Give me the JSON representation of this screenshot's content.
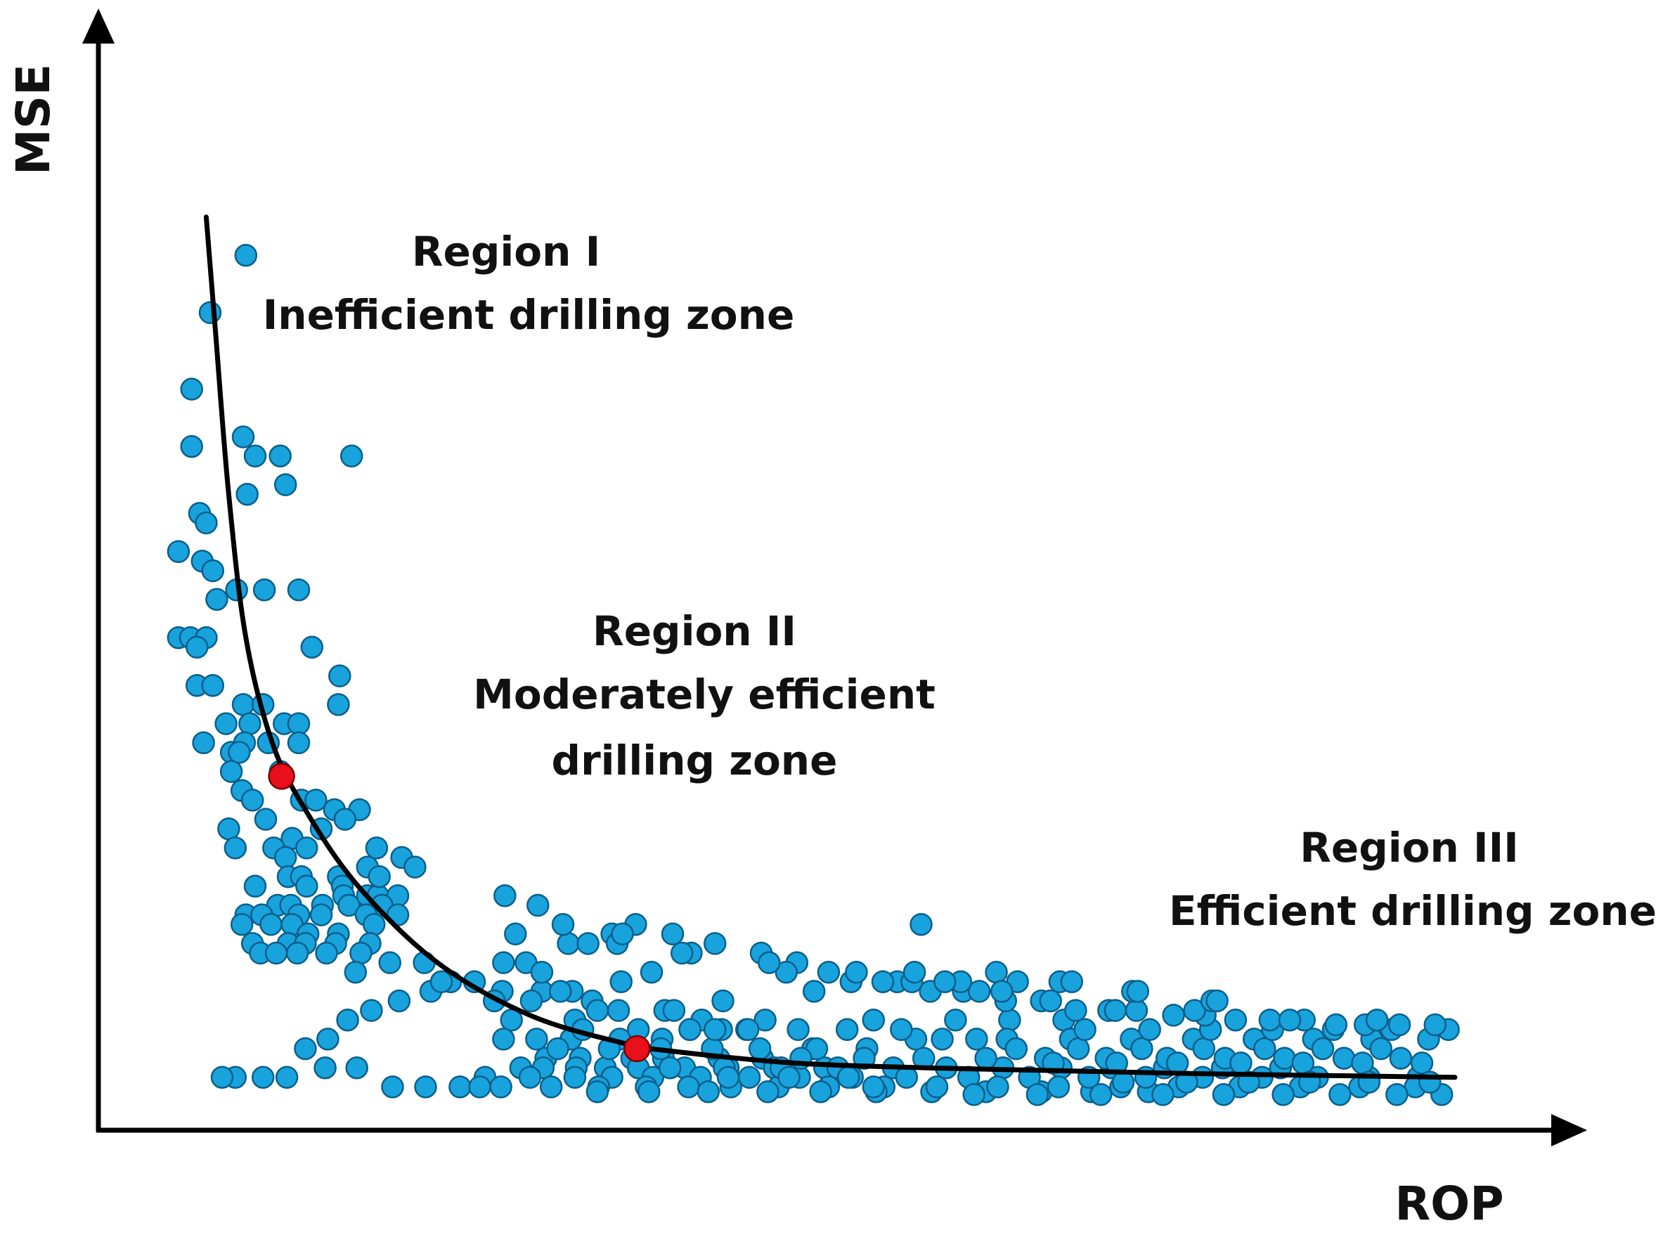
{
  "chart_data": {
    "type": "scatter",
    "title": "",
    "xlabel": "ROP",
    "ylabel": "MSE",
    "xlim": [
      0,
      100
    ],
    "ylim": [
      0,
      100
    ],
    "grid": false,
    "colors": {
      "points": "#18A3DD",
      "point_outline": "#0B5E8A",
      "curve": "#000000",
      "transition_points": "#E8101A",
      "axis": "#000000"
    },
    "regions": [
      {
        "name": "Region I",
        "label": "Inefficient drilling zone",
        "lines": [
          "Region I",
          "Inefficient drilling zone"
        ]
      },
      {
        "name": "Region II",
        "label": "Moderately efficient drilling zone",
        "lines": [
          "Region II",
          "Moderately efficient",
          "drilling zone"
        ]
      },
      {
        "name": "Region III",
        "label": "Efficient drilling zone",
        "lines": [
          "Region III",
          "Efficient drilling zone"
        ]
      }
    ],
    "trend_curve": {
      "x": [
        5.5,
        6.2,
        7.2,
        8.5,
        10.5,
        13,
        17,
        23,
        30,
        37,
        41,
        50,
        60,
        70,
        80,
        90,
        100
      ],
      "y": [
        92,
        80,
        63,
        48,
        37,
        30,
        22,
        14,
        8.5,
        5.6,
        4.7,
        3.5,
        3.0,
        2.7,
        2.4,
        2.2,
        2.0
      ]
    },
    "transition_points": [
      {
        "x": 11.2,
        "y": 33.5
      },
      {
        "x": 38.1,
        "y": 5.0
      }
    ],
    "scatter_x": [
      8.5,
      5.8,
      4.4,
      4.4,
      8.3,
      9.2,
      11.1,
      11.5,
      8.6,
      16.5,
      5.0,
      5.5,
      3.4,
      5.2,
      6.0,
      7.8,
      9.9,
      12.5,
      6.3,
      3.4,
      4.3,
      5.5,
      4.8,
      13.5,
      15.6,
      4.8,
      6.0,
      8.3,
      9.8,
      15.5,
      7.0,
      8.8,
      11.4,
      12.5,
      5.3,
      8.4,
      10.2,
      12.5,
      7.4,
      8.0,
      7.4,
      11.1,
      8.2,
      9.0,
      12.7,
      13.8,
      15.2,
      17.1,
      10.0,
      14.2,
      7.2,
      12.0,
      16.0,
      7.7,
      10.6,
      13.1,
      11.5,
      18.4,
      20.3,
      21.3,
      11.7,
      12.7,
      15.5,
      13.1,
      15.8,
      15.9,
      17.7,
      18.5,
      20.0,
      9.2,
      10.9,
      11.9,
      14.3,
      16.3,
      18.8,
      8.5,
      9.7,
      12.5,
      14.2,
      17.6,
      20.0,
      8.2,
      10.4,
      12.0,
      13.2,
      15.5,
      18.2,
      9.0,
      11.7,
      13.0,
      15.3,
      17.9,
      9.6,
      10.8,
      12.4,
      14.6,
      17.2,
      16.8,
      19.4,
      22.0,
      22.5,
      24.0,
      25.8,
      27.9,
      30.9,
      33.2,
      36.9,
      28.0,
      29.7,
      30.9,
      39.2,
      42.2,
      36.2,
      32.9,
      34.4,
      28.6,
      33.4,
      36.7,
      40.2,
      43.0,
      30.1,
      32.3,
      34.7,
      28.0,
      30.5,
      33.1,
      36.8,
      40.0,
      42.1,
      44.5,
      31.2,
      33.8,
      37.7,
      40.1,
      44.3,
      47.6,
      51.4,
      29.3,
      31.0,
      33.5,
      35.7,
      38.2,
      41.7,
      45.0,
      48.5,
      52.3,
      26.6,
      30.0,
      33.4,
      36.2,
      39.3,
      42.9,
      46.6,
      50.4,
      54.4,
      27.8,
      31.6,
      35.2,
      38.8,
      42.0,
      45.2,
      48.8,
      52.6,
      56.8,
      32.1,
      36.0,
      39.9,
      43.8,
      47.4,
      51.7,
      55.5,
      59.2,
      63.8,
      34.0,
      38.2,
      42.1,
      46.4,
      50.3,
      54.0,
      58.1,
      62.2,
      66.3,
      70.4,
      35.1,
      39.0,
      43.5,
      48.0,
      52.0,
      56.2,
      60.4,
      64.5,
      68.7,
      72.5,
      76.8,
      40.6,
      44.7,
      49.0,
      53.3,
      57.5,
      61.5,
      65.8,
      70.2,
      74.0,
      78.0,
      82.4,
      86.8,
      45.0,
      49.6,
      54.1,
      58.5,
      63.2,
      67.8,
      72.3,
      76.6,
      80.9,
      85.4,
      89.6,
      93.5,
      97.2,
      50.5,
      55.3,
      59.8,
      64.5,
      69.0,
      73.6,
      78.2,
      82.6,
      87.1,
      91.6,
      95.9,
      56.0,
      60.8,
      65.4,
      70.0,
      74.7,
      79.1,
      83.7,
      88.3,
      92.8,
      97.0,
      61.2,
      66.1,
      70.9,
      75.5,
      80.2,
      84.8,
      89.3,
      93.7,
      98.0,
      63.6,
      68.4,
      73.2,
      77.9,
      82.5,
      87.0,
      91.3,
      95.6,
      99.0,
      66.8,
      71.5,
      76.3,
      81.0,
      85.6,
      90.0,
      94.4,
      69.6,
      74.4,
      79.0,
      83.8,
      88.5,
      93.0,
      97.5,
      72.0,
      76.9,
      81.5,
      86.2,
      90.8,
      95.2,
      99.5,
      74.9,
      79.7,
      84.4,
      89.0,
      93.5,
      98.1,
      17.7,
      18.6,
      28.1,
      30.6,
      38.0,
      40.8,
      44.0,
      47.5,
      50.2,
      52.6,
      54.3,
      57.8,
      60.3,
      62.8,
      66.0,
      68.7,
      71.3,
      73.8,
      75.9,
      78.7,
      81.1,
      83.4,
      86.0,
      88.6,
      91.0,
      93.2,
      95.8,
      98.5,
      44.6,
      51.5,
      58.9,
      64.0,
      69.4,
      74.3,
      80.3,
      87.5,
      94.1,
      49.4,
      56.7,
      65.3,
      70.1,
      75.6,
      81.6,
      27.3,
      35.1,
      40.9,
      47.8,
      56.0,
      59.1,
      62.6,
      66.9,
      71.0,
      76.0,
      82.0,
      59.6,
      44.0,
      46.5,
      28.9,
      36.6,
      32.5,
      37.0,
      41.5,
      48.1,
      54.7,
      61.4,
      65.7,
      19.6,
      22.1,
      24.7,
      26.2,
      16.9,
      14.5,
      11.6,
      9.8,
      7.7,
      6.7,
      13.0,
      14.7,
      16.2,
      18.0,
      20.1,
      23.3
    ],
    "scatter_y": [
      88,
      82,
      74,
      68,
      69,
      67,
      67,
      64,
      63,
      67,
      61,
      60,
      57,
      56,
      55,
      53,
      53,
      53,
      52,
      48,
      48,
      48,
      47,
      47,
      44,
      43,
      43,
      41,
      41,
      41,
      39,
      39,
      39,
      39,
      37,
      37,
      37,
      37,
      36,
      36,
      34,
      34,
      32,
      31,
      31,
      31,
      30,
      30,
      29,
      28,
      28,
      27,
      29,
      26,
      26,
      26,
      25,
      26,
      25,
      24,
      23,
      23,
      23,
      22,
      22,
      21,
      21,
      21,
      21,
      22,
      20,
      20,
      20,
      20,
      20,
      19,
      19,
      19,
      19,
      19,
      19,
      18,
      18,
      18,
      17,
      17,
      18,
      16,
      16,
      16,
      16,
      16,
      15,
      15,
      15,
      15,
      15,
      13,
      14,
      14,
      11,
      12,
      12,
      11,
      11,
      11,
      12,
      14,
      14,
      13,
      13,
      15,
      17,
      16,
      16,
      8,
      8,
      9,
      9,
      8,
      10,
      11,
      10,
      6,
      6,
      6,
      6,
      6,
      7,
      7,
      4,
      4,
      4,
      4,
      4,
      4,
      5,
      3,
      3,
      3,
      3,
      3,
      3,
      3,
      3,
      3,
      2,
      2,
      2,
      2,
      2,
      2,
      2,
      2,
      2,
      1,
      1,
      1,
      1,
      1,
      1,
      1,
      1,
      1,
      5,
      5,
      5,
      5,
      5,
      5,
      5,
      6,
      6,
      7,
      7,
      7,
      7,
      7,
      7,
      7,
      8,
      8,
      8,
      0.5,
      0.5,
      0.5,
      0.5,
      0.5,
      0.5,
      0.5,
      0.5,
      0.5,
      0.5,
      0.5,
      3,
      3,
      3,
      3,
      3,
      3,
      3,
      3,
      3,
      3,
      3,
      3,
      2,
      2,
      2,
      2,
      2,
      2,
      2,
      2,
      2,
      2,
      2,
      2,
      2,
      4,
      4,
      4,
      4,
      4,
      4,
      4,
      4,
      4,
      4,
      4,
      1,
      1,
      1,
      1,
      1,
      1,
      1,
      1,
      1,
      1,
      6,
      6,
      6,
      6,
      6,
      6,
      6,
      6,
      6,
      0.2,
      0.2,
      0.2,
      0.2,
      0.2,
      0.2,
      0.2,
      0.2,
      0.2,
      5,
      5,
      5,
      5,
      5,
      5,
      5,
      3.5,
      3.5,
      3.5,
      3.5,
      3.5,
      3.5,
      3.5,
      7,
      7,
      7,
      7,
      7,
      7,
      7,
      1.5,
      1.5,
      1.5,
      1.5,
      1.5,
      1.5,
      24,
      23,
      21,
      20,
      18,
      17,
      16,
      15,
      14,
      13,
      12,
      12,
      11,
      11,
      10,
      10,
      9,
      9,
      9,
      8.5,
      8.5,
      8,
      8,
      8,
      7.5,
      7.5,
      7.5,
      7.5,
      10,
      11,
      12,
      11,
      10,
      9,
      9,
      8,
      8,
      13,
      12,
      13,
      12,
      11,
      10,
      10,
      9,
      9,
      8,
      8,
      13,
      12,
      12,
      12,
      11,
      10,
      18,
      7,
      7,
      17,
      16,
      18,
      17,
      15,
      14,
      13,
      12,
      11,
      1,
      1,
      1,
      1,
      3,
      3,
      2,
      2,
      2,
      2,
      5,
      6,
      8,
      9,
      10,
      12
    ]
  }
}
